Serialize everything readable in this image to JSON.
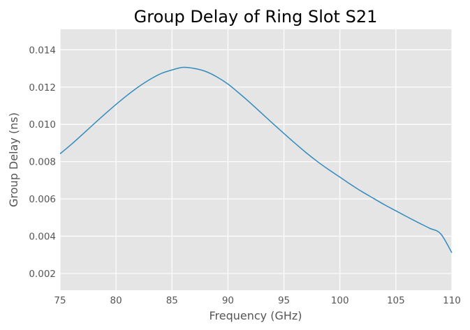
{
  "chart_data": {
    "type": "line",
    "title": "Group Delay of Ring Slot S21",
    "xlabel": "Frequency (GHz)",
    "ylabel": "Group Delay (ns)",
    "xlim": [
      75,
      110
    ],
    "ylim": [
      0.0011,
      0.0151
    ],
    "x_ticks": [
      75,
      80,
      85,
      90,
      95,
      100,
      105,
      110
    ],
    "x_tick_labels": [
      "75",
      "80",
      "85",
      "90",
      "95",
      "100",
      "105",
      "110"
    ],
    "y_ticks": [
      0.002,
      0.004,
      0.006,
      0.008,
      0.01,
      0.012,
      0.014
    ],
    "y_tick_labels": [
      "0.002",
      "0.004",
      "0.006",
      "0.008",
      "0.010",
      "0.012",
      "0.014"
    ],
    "grid": true,
    "colors": {
      "background": "#e5e5e5",
      "grid": "#ffffff",
      "line": "#348abd"
    },
    "series": [
      {
        "x": [
          75,
          76,
          77,
          78,
          79,
          80,
          81,
          82,
          83,
          84,
          85,
          86,
          87,
          88,
          89,
          90,
          91,
          92,
          93,
          94,
          95,
          96,
          97,
          98,
          99,
          100,
          101,
          102,
          103,
          104,
          105,
          106,
          107,
          108,
          109,
          110
        ],
        "values": [
          0.00842,
          0.00892,
          0.00946,
          0.01001,
          0.01055,
          0.01107,
          0.01156,
          0.01201,
          0.0124,
          0.01272,
          0.01292,
          0.01306,
          0.013,
          0.01284,
          0.01255,
          0.01216,
          0.01167,
          0.01115,
          0.0106,
          0.01005,
          0.00951,
          0.00898,
          0.00847,
          0.008,
          0.00757,
          0.00717,
          0.00676,
          0.00638,
          0.00603,
          0.00568,
          0.00536,
          0.00504,
          0.00473,
          0.00443,
          0.00413,
          0.00311
        ]
      }
    ]
  }
}
